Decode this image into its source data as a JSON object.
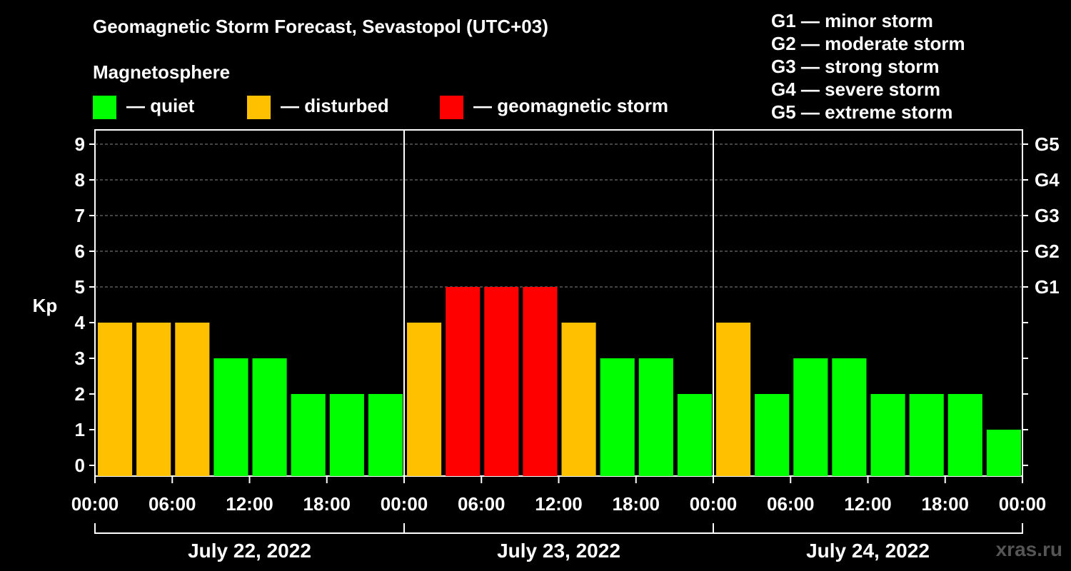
{
  "header": {
    "title": "Geomagnetic Storm Forecast, Sevastopol (UTC+03)",
    "subtitle": "Magnetosphere"
  },
  "legend": [
    {
      "label": "— quiet",
      "color": "#00ff00"
    },
    {
      "label": "— disturbed",
      "color": "#ffc000"
    },
    {
      "label": "— geomagnetic storm",
      "color": "#ff0000"
    }
  ],
  "storm_scale": [
    "G1 — minor storm",
    "G2 — moderate storm",
    "G3 — strong storm",
    "G4 — severe storm",
    "G5 — extreme storm"
  ],
  "watermark": "xras.ru",
  "chart_data": {
    "type": "bar",
    "ylabel": "Kp",
    "ylim": [
      0,
      9
    ],
    "yticks": [
      "0",
      "1",
      "2",
      "3",
      "4",
      "5",
      "6",
      "7",
      "8",
      "9"
    ],
    "right_axis_ticks": [
      {
        "value": 5,
        "label": "G1"
      },
      {
        "value": 6,
        "label": "G2"
      },
      {
        "value": 7,
        "label": "G3"
      },
      {
        "value": 8,
        "label": "G4"
      },
      {
        "value": 9,
        "label": "G5"
      }
    ],
    "grid": "dashed horizontal lines at Kp 5–9",
    "days": [
      "July 22, 2022",
      "July 23, 2022",
      "July 24, 2022"
    ],
    "time_ticks": [
      "00:00",
      "06:00",
      "12:00",
      "18:00",
      "00:00",
      "06:00",
      "12:00",
      "18:00",
      "00:00",
      "06:00",
      "12:00",
      "18:00",
      "00:00"
    ],
    "interval_hours": 3,
    "values": [
      4,
      4,
      4,
      3,
      3,
      2,
      2,
      2,
      4,
      5,
      5,
      5,
      4,
      3,
      3,
      2,
      4,
      2,
      3,
      3,
      2,
      2,
      2,
      1
    ],
    "colors": {
      "quiet": "#00ff00",
      "disturbed": "#ffc000",
      "storm": "#ff0000"
    },
    "thresholds": {
      "disturbed": 4,
      "storm": 5
    }
  }
}
